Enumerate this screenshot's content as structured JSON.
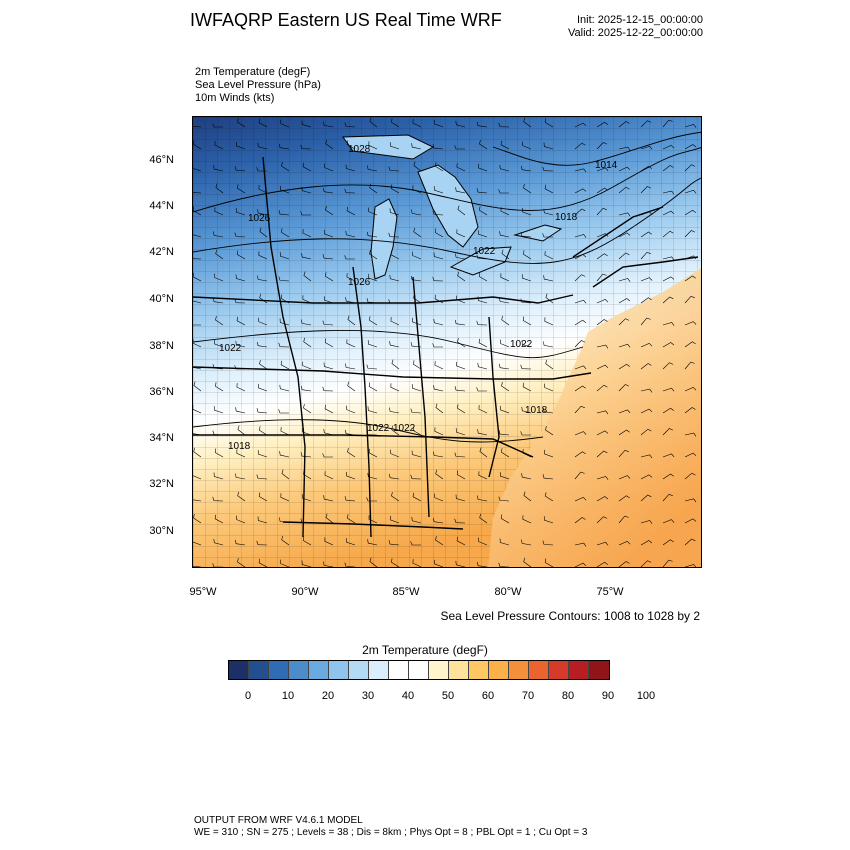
{
  "title": "IWFAQRP Eastern US Real Time WRF",
  "init": "Init: 2025-12-15_00:00:00",
  "valid": "Valid: 2025-12-22_00:00:00",
  "fields": [
    "2m Temperature   (degF)",
    "Sea Level Pressure   (hPa)",
    "10m Winds   (kts)"
  ],
  "lat_labels": [
    "46°N",
    "44°N",
    "42°N",
    "40°N",
    "38°N",
    "36°N",
    "34°N",
    "32°N",
    "30°N"
  ],
  "lon_labels": [
    "95°W",
    "90°W",
    "85°W",
    "80°W",
    "75°W"
  ],
  "contour_note": "Sea Level Pressure Contours: 1008 to 1028 by 2",
  "contour_labels": [
    "1028",
    "1026",
    "1026",
    "1022",
    "1022",
    "1014",
    "1018",
    "1022",
    "1022",
    "1018",
    "1018",
    "1022"
  ],
  "colorbar": {
    "title": "2m Temperature  (degF)",
    "labels": [
      "0",
      "10",
      "20",
      "30",
      "40",
      "50",
      "60",
      "70",
      "80",
      "90",
      "100"
    ],
    "colors": [
      "#1c2f66",
      "#234f91",
      "#2f6cb3",
      "#4d8ccb",
      "#6aaae0",
      "#8ec4ee",
      "#b4dbf6",
      "#daeefc",
      "#ffffff",
      "#ffffff",
      "#fff4cc",
      "#ffe39a",
      "#ffc864",
      "#fbb04a",
      "#f48f3b",
      "#e9642e",
      "#d63a2a",
      "#b81d22",
      "#8f1519"
    ]
  },
  "footer": {
    "line1": "OUTPUT FROM WRF V4.6.1 MODEL",
    "line2": "WE = 310 ; SN = 275 ; Levels = 38 ; Dis = 8km ; Phys Opt = 8 ; PBL Opt = 1 ; Cu Opt = 3"
  }
}
